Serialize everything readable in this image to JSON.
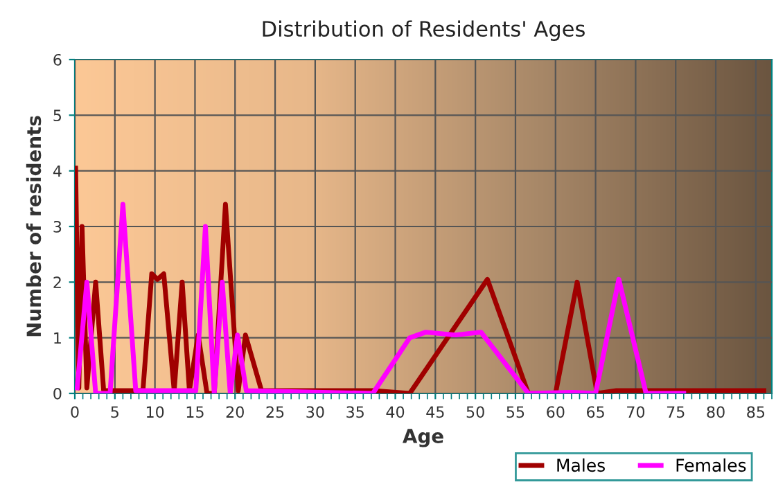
{
  "chart_data": {
    "type": "line",
    "title": "Distribution of Residents' Ages",
    "xlabel": "Age",
    "ylabel": "Number of residents",
    "xlim": [
      0,
      87
    ],
    "xticks": [
      0,
      5,
      10,
      15,
      20,
      25,
      30,
      35,
      40,
      45,
      50,
      55,
      60,
      65,
      70,
      75,
      80,
      85
    ],
    "ylim": [
      0,
      6
    ],
    "yticks": [
      0,
      1,
      2,
      3,
      4,
      5,
      6
    ],
    "grid": true,
    "legend": "bottom right",
    "marker": "none",
    "line_style": "solid",
    "series": [
      {
        "name": "Males",
        "color": "#a00000",
        "x": [
          0.1,
          0.5,
          0.9,
          1.5,
          2.6,
          3.6,
          8.5,
          9.6,
          10.3,
          11.1,
          12.4,
          13.4,
          14.3,
          15.4,
          16.5,
          17.4,
          18.8,
          20.4,
          21.3,
          23.3,
          37.2,
          41.8,
          51.5,
          56.6,
          60,
          62.7,
          65.2,
          67.6,
          86
        ],
        "values": [
          4.05,
          0.1,
          3,
          0.1,
          2,
          0.05,
          0.05,
          2.15,
          2.05,
          2.15,
          0.05,
          2,
          0.05,
          1.05,
          0,
          0,
          3.4,
          0.05,
          1.05,
          0.05,
          0.05,
          0,
          2.05,
          0,
          0,
          2,
          0,
          0.05,
          0.05
        ]
      },
      {
        "name": "Females",
        "color": "#ff00ff",
        "x": [
          0.3,
          1.5,
          2.6,
          4.4,
          6,
          7.6,
          15.1,
          16.3,
          17.4,
          18.4,
          19.4,
          20.3,
          21.4,
          37.2,
          41.8,
          43.8,
          47.5,
          50.7,
          56.6,
          62.1,
          65,
          67.9,
          71.3,
          76
        ],
        "values": [
          0.1,
          2,
          0,
          0,
          3.4,
          0.05,
          0.05,
          3,
          0,
          2,
          0,
          1.05,
          0.05,
          0,
          1,
          1.1,
          1.05,
          1.1,
          0,
          0.02,
          0,
          2.05,
          0,
          0
        ]
      }
    ]
  }
}
